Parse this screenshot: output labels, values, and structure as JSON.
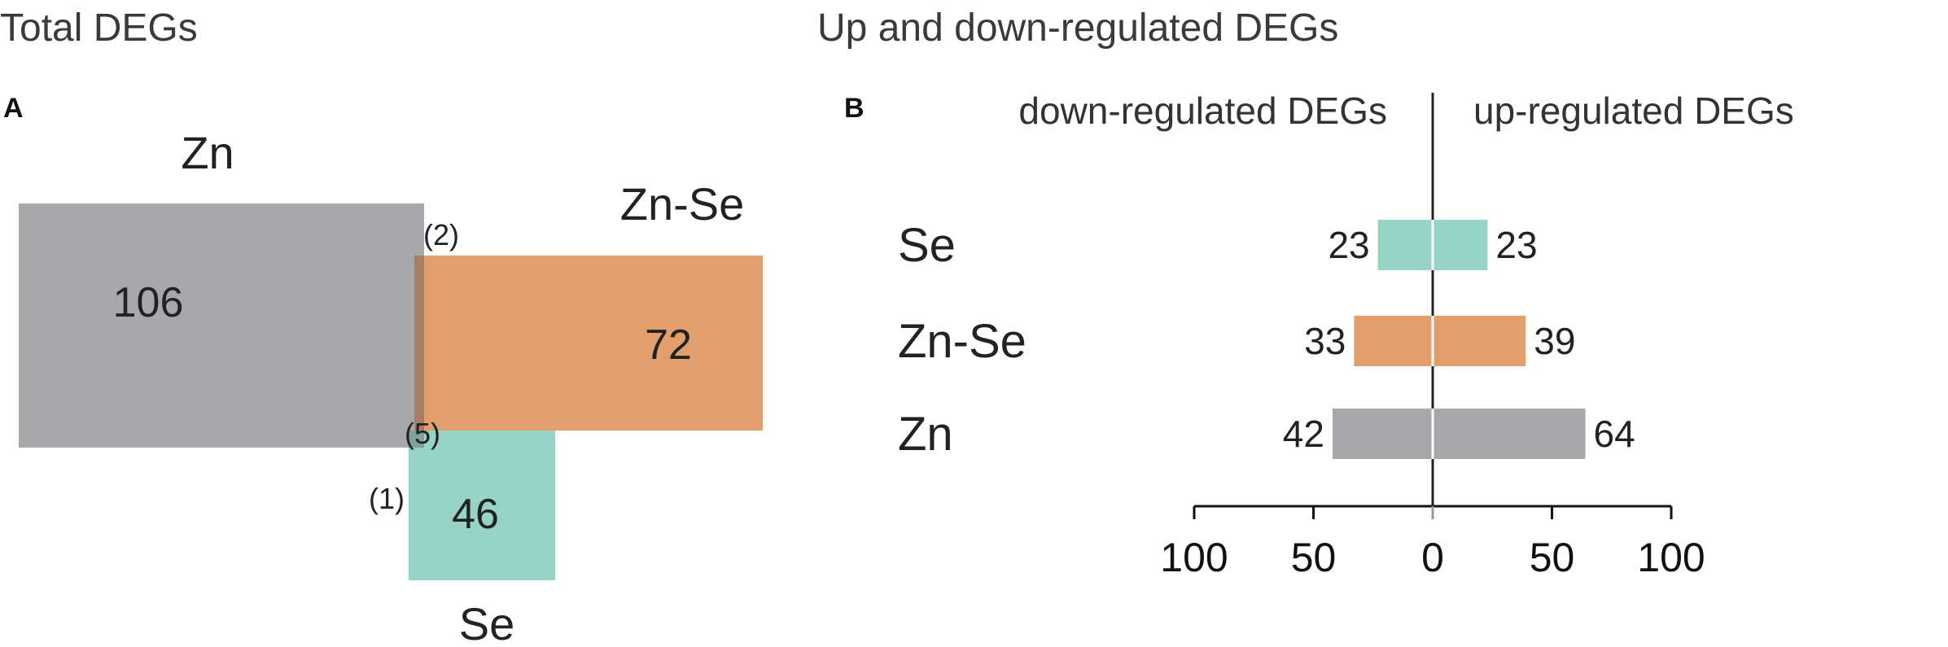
{
  "panel_a": {
    "title": "Total DEGs",
    "letter": "A",
    "sets": [
      {
        "name": "Zn",
        "count": "106",
        "color": "#a7a8ab"
      },
      {
        "name": "Zn-Se",
        "count": "72",
        "color": "#e29f6c"
      },
      {
        "name": "Se",
        "count": "46",
        "color": "#98d3c8"
      }
    ],
    "overlaps": [
      {
        "sets": [
          "Zn",
          "Zn-Se"
        ],
        "label": "(2)"
      },
      {
        "sets": [
          "Zn",
          "Zn-Se",
          "Se"
        ],
        "label": "(5)"
      },
      {
        "sets": [
          "Zn-Se",
          "Se"
        ],
        "label": "(1)"
      }
    ]
  },
  "panel_b": {
    "title": "Up and down-regulated DEGs",
    "letter": "B",
    "left_header": "down-regulated DEGs",
    "right_header": "up-regulated DEGs"
  },
  "chart_data": {
    "type": "bar",
    "orientation": "horizontal-diverging",
    "categories": [
      "Se",
      "Zn-Se",
      "Zn"
    ],
    "series": [
      {
        "name": "down-regulated DEGs",
        "values": [
          23,
          33,
          42
        ]
      },
      {
        "name": "up-regulated DEGs",
        "values": [
          23,
          39,
          64
        ]
      }
    ],
    "colors": {
      "Se": "#98d3c8",
      "Zn-Se": "#e29f6c",
      "Zn": "#a7a8ab"
    },
    "xlim": [
      -100,
      100
    ],
    "ticks": [
      -100,
      -50,
      0,
      50,
      100
    ],
    "tick_labels": [
      "100",
      "50",
      "0",
      "50",
      "100"
    ]
  }
}
